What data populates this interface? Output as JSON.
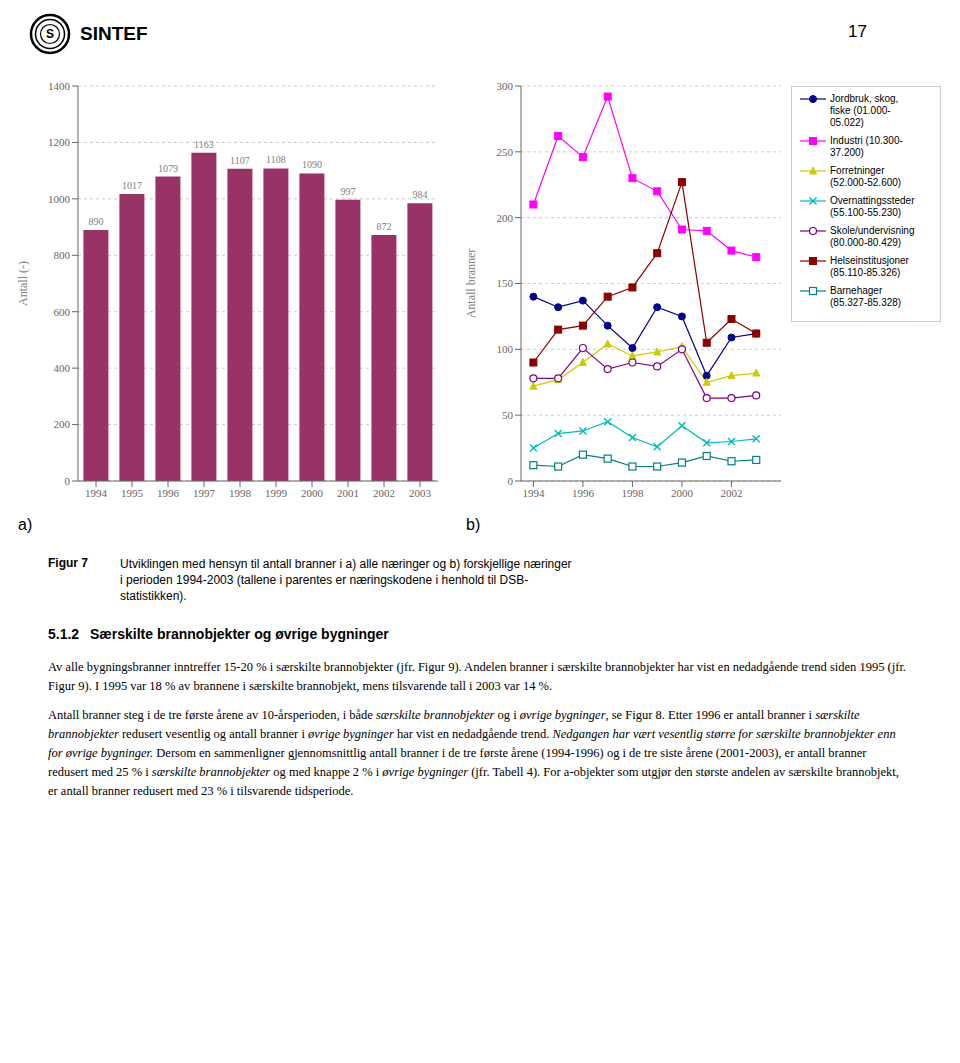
{
  "chart_data": [
    {
      "type": "bar",
      "categories": [
        "1994",
        "1995",
        "1996",
        "1997",
        "1998",
        "1999",
        "2000",
        "2001",
        "2002",
        "2003"
      ],
      "values": [
        890,
        1017,
        1079,
        1163,
        1107,
        1108,
        1090,
        997,
        872,
        984
      ],
      "color": "#993366",
      "y_label": "Antall (-)",
      "ylim": [
        0,
        1400
      ],
      "yticks": [
        0,
        200,
        400,
        600,
        800,
        1000,
        1200,
        1400
      ],
      "grid": true,
      "data_labels": true,
      "annotations": [
        "a)"
      ]
    },
    {
      "type": "line",
      "x": [
        1994,
        1995,
        1996,
        1997,
        1998,
        1999,
        2000,
        2001,
        2002,
        2003
      ],
      "xlim": [
        1993.5,
        2004.0
      ],
      "xticks": [
        1994,
        1996,
        1998,
        2000,
        2002
      ],
      "y_label": "Antall branner",
      "ylim": [
        0,
        300
      ],
      "yticks": [
        0,
        50,
        100,
        150,
        200,
        250,
        300
      ],
      "grid": true,
      "legend": "right",
      "annotations": [
        "b)"
      ],
      "series": [
        {
          "name": "Jordbruk, skog,\nfiske (01.000-\n05.022)",
          "color": "#00008B",
          "marker": "circle",
          "values": [
            140,
            132,
            137,
            118,
            101,
            132,
            125,
            80,
            109,
            112
          ]
        },
        {
          "name": "Industri (10.300-\n37.200)",
          "color": "#FF00FF",
          "marker": "square",
          "values": [
            210,
            262,
            246,
            292,
            230,
            220,
            191,
            190,
            175,
            170
          ]
        },
        {
          "name": "Forretninger\n(52.000-52.600)",
          "color": "#cccc00",
          "marker": "triangle",
          "values": [
            72,
            77,
            90,
            104,
            95,
            98,
            102,
            75,
            80,
            82
          ]
        },
        {
          "name": "Overnattingssteder\n(55.100-55.230)",
          "color": "#00bbbb",
          "marker": "x",
          "values": [
            25,
            36,
            38,
            45,
            33,
            26,
            42,
            29,
            30,
            32
          ]
        },
        {
          "name": "Skole/undervisning\n(80.000-80.429)",
          "color": "#800080",
          "marker": "open_circle",
          "values": [
            78,
            78,
            101,
            85,
            90,
            87,
            100,
            63,
            63,
            65
          ]
        },
        {
          "name": "Helseinstitusjoner\n(85.110-85.326)",
          "color": "#8B0000",
          "marker": "square",
          "values": [
            90,
            115,
            118,
            140,
            147,
            173,
            227,
            105,
            123,
            112
          ]
        },
        {
          "name": "Barnehager\n(85.327-85.328)",
          "color": "#008080",
          "marker": "open_square",
          "values": [
            12,
            11,
            20,
            17,
            11,
            11,
            14,
            19,
            15,
            16
          ]
        }
      ]
    }
  ],
  "logo": {
    "mark": "S",
    "text": "SINTEF"
  },
  "page_number": "17",
  "caption": {
    "label": "Figur 7",
    "text": "Utviklingen med hensyn til antall branner i a) alle næringer og b) forskjellige næringer\ni perioden 1994-2003 (tallene i parentes er næringskodene i henhold til DSB-\nstatistikken)."
  },
  "section_header": "5.1.2  Særskilte brannobjekter og øvrige bygninger",
  "paragraphs": [
    [
      {
        "text": "Av alle bygningsbranner inntreffer 15-20 % i særskilte brannobjekter (jfr. Figur 9). Andelen branner i særskilte brannobjekter har vist en nedadgående trend siden 1995 (jfr. Figur 9). I 1995 var 18 % av brannene i særskilte brannobjekt, mens tilsvarende tall i 2003 var 14 %.",
        "italic": false
      }
    ],
    [
      {
        "text": "Antall branner steg i de tre første årene av 10-årsperioden, i både ",
        "italic": false
      },
      {
        "text": "særskilte brannobjekter",
        "italic": true
      },
      {
        "text": " og i ",
        "italic": false
      },
      {
        "text": "øvrige bygninger",
        "italic": true
      },
      {
        "text": ", se Figur 8. Etter 1996 er antall branner i ",
        "italic": false
      },
      {
        "text": "særskilte brannobjekter",
        "italic": true
      },
      {
        "text": " redusert vesentlig og antall branner i ",
        "italic": false
      },
      {
        "text": "øvrige bygninger",
        "italic": true
      },
      {
        "text": " har vist en nedadgående trend. ",
        "italic": false
      },
      {
        "text": "Nedgangen har vært vesentlig større for særskilte brannobjekter enn for øvrige bygninger.",
        "italic": true
      },
      {
        "text": " Dersom en sammenligner gjennomsnittlig antall branner i de tre første årene (1994-1996) og i de tre siste årene (2001-2003), er antall branner redusert med 25 % i ",
        "italic": false
      },
      {
        "text": "særskilte brannobjekter",
        "italic": true
      },
      {
        "text": " og med knappe 2 % i ",
        "italic": false
      },
      {
        "text": "øvrige bygninger",
        "italic": true
      },
      {
        "text": " (jfr. Tabell 4). For a-objekter som utgjør den største andelen av særskilte brannobjekt, er antall branner redusert med 23 % i tilsvarende tidsperiode.",
        "italic": false
      }
    ]
  ]
}
